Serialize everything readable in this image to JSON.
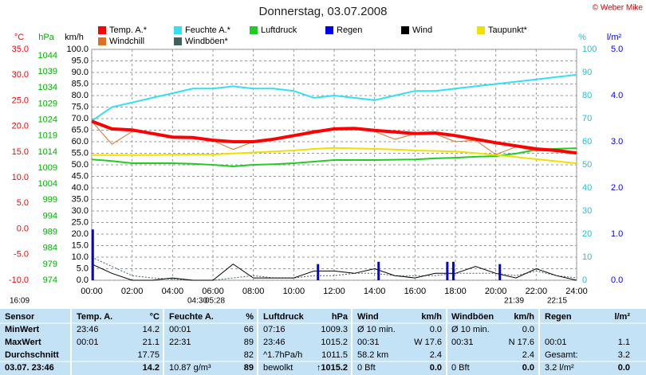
{
  "chart_data": {
    "type": "line",
    "title": "Donnerstag, 03.07.2008",
    "credit": "© Weber Mike",
    "x": [
      0,
      1,
      2,
      3,
      4,
      5,
      6,
      7,
      8,
      9,
      10,
      11,
      12,
      13,
      14,
      15,
      16,
      17,
      18,
      19,
      20,
      21,
      22,
      23,
      24
    ],
    "xlim": [
      0,
      24
    ],
    "xticks": [
      {
        "value": 0,
        "label": "00:00"
      },
      {
        "value": 2,
        "label": "02:00"
      },
      {
        "value": 4,
        "label": "04:00"
      },
      {
        "value": 6,
        "label": "06:00"
      },
      {
        "value": 8,
        "label": "08:00"
      },
      {
        "value": 10,
        "label": "10:00"
      },
      {
        "value": 12,
        "label": "12:00"
      },
      {
        "value": 14,
        "label": "14:00"
      },
      {
        "value": 16,
        "label": "16:00"
      },
      {
        "value": 18,
        "label": "18:00"
      },
      {
        "value": 20,
        "label": "20:00"
      },
      {
        "value": 22,
        "label": "22:00"
      },
      {
        "value": 24,
        "label": "24:00"
      }
    ],
    "grid": true,
    "axes": [
      {
        "id": "C",
        "label": "°C",
        "color": "#ff0000",
        "lim": [
          -10,
          35
        ],
        "ticks": [
          {
            "value": -10,
            "label": "-10.0"
          },
          {
            "value": -5,
            "label": "-5.0"
          },
          {
            "value": 0,
            "label": "0.0"
          },
          {
            "value": 5,
            "label": "5.0"
          },
          {
            "value": 10,
            "label": "10.0"
          },
          {
            "value": 15,
            "label": "15.0"
          },
          {
            "value": 20,
            "label": "20.0"
          },
          {
            "value": 25,
            "label": "25.0"
          },
          {
            "value": 30,
            "label": "30.0"
          },
          {
            "value": 35,
            "label": "35.0"
          }
        ]
      },
      {
        "id": "hPa",
        "label": "hPa",
        "color": "#00b000",
        "lim": [
          974,
          1046
        ],
        "ticks": [
          974,
          979,
          984,
          989,
          994,
          999,
          1004,
          1009,
          1014,
          1019,
          1024,
          1029,
          1034,
          1039,
          1044
        ]
      },
      {
        "id": "kmh",
        "label": "km/h",
        "color": "#000000",
        "lim": [
          0,
          100
        ],
        "ticks": [
          {
            "value": 0,
            "label": "0.0"
          },
          {
            "value": 5,
            "label": "5.0"
          },
          {
            "value": 10,
            "label": "10.0"
          },
          {
            "value": 15,
            "label": "15.0"
          },
          {
            "value": 20,
            "label": "20.0"
          },
          {
            "value": 25,
            "label": "25.0"
          },
          {
            "value": 30,
            "label": "30.0"
          },
          {
            "value": 35,
            "label": "35.0"
          },
          {
            "value": 40,
            "label": "40.0"
          },
          {
            "value": 45,
            "label": "45.0"
          },
          {
            "value": 50,
            "label": "50.0"
          },
          {
            "value": 55,
            "label": "55.0"
          },
          {
            "value": 60,
            "label": "60.0"
          },
          {
            "value": 65,
            "label": "65.0"
          },
          {
            "value": 70,
            "label": "70.0"
          },
          {
            "value": 75,
            "label": "75.0"
          },
          {
            "value": 80,
            "label": "80.0"
          },
          {
            "value": 85,
            "label": "85.0"
          },
          {
            "value": 90,
            "label": "90.0"
          },
          {
            "value": 95,
            "label": "95.0"
          },
          {
            "value": 100,
            "label": "100.0"
          }
        ]
      },
      {
        "id": "pct",
        "label": "%",
        "color": "#20c0d0",
        "lim": [
          0,
          100
        ],
        "ticks": [
          0,
          10,
          20,
          30,
          40,
          50,
          60,
          70,
          80,
          90,
          100
        ]
      },
      {
        "id": "lm2",
        "label": "l/m²",
        "color": "#0000ff",
        "lim": [
          0,
          5
        ],
        "ticks": [
          {
            "value": 0,
            "label": "0.0"
          },
          {
            "value": 1,
            "label": "1.0"
          },
          {
            "value": 2,
            "label": "2.0"
          },
          {
            "value": 3,
            "label": "3.0"
          },
          {
            "value": 4,
            "label": "4.0"
          },
          {
            "value": 5,
            "label": "5.0"
          }
        ]
      }
    ],
    "series": [
      {
        "name": "Temp. A.*",
        "color": "#ff0000",
        "axis": "C",
        "values": [
          21.0,
          19.5,
          19.3,
          18.6,
          17.9,
          17.8,
          17.3,
          17.0,
          17.0,
          17.5,
          18.2,
          18.9,
          19.5,
          19.6,
          19.2,
          18.9,
          18.6,
          18.7,
          18.2,
          17.5,
          16.8,
          16.2,
          15.6,
          15.3,
          14.8
        ]
      },
      {
        "name": "Feuchte A.*",
        "color": "#33e0f0",
        "axis": "pct",
        "values": [
          69,
          75,
          77,
          79,
          81,
          83,
          83,
          84,
          83,
          83,
          82,
          79,
          80,
          79,
          78,
          80,
          82,
          82,
          83,
          84,
          85,
          86,
          87,
          88,
          89
        ]
      },
      {
        "name": "Luftdruck",
        "color": "#22cc22",
        "axis": "hPa",
        "values": [
          1011.7,
          1011.2,
          1010.5,
          1010.5,
          1010.5,
          1010.3,
          1010.0,
          1009.5,
          1010.0,
          1010.2,
          1010.5,
          1011.0,
          1011.5,
          1011.5,
          1011.5,
          1011.6,
          1011.7,
          1012.0,
          1012.2,
          1012.5,
          1012.7,
          1013.5,
          1014.7,
          1015.0,
          1015.2
        ]
      },
      {
        "name": "Regen",
        "color": "#0000ee",
        "axis": "lm2",
        "style": "bar",
        "x": [
          0.05,
          11.2,
          14.2,
          17.6,
          17.9,
          20.2
        ],
        "values": [
          1.1,
          0.35,
          0.4,
          0.4,
          0.4,
          0.35
        ]
      },
      {
        "name": "Wind",
        "color": "#000000",
        "axis": "kmh",
        "values": [
          7,
          3,
          0,
          0,
          1,
          0,
          0,
          7,
          1,
          1,
          1,
          4,
          4,
          3,
          5,
          2,
          1,
          3,
          3,
          6,
          3,
          1,
          5,
          2,
          0
        ]
      },
      {
        "name": "Taupunkt*",
        "color": "#f0e000",
        "axis": "C",
        "values": [
          14.4,
          14.4,
          14.4,
          14.4,
          14.5,
          14.5,
          14.5,
          14.7,
          14.9,
          15.1,
          15.3,
          15.6,
          15.8,
          15.7,
          15.6,
          15.5,
          15.3,
          15.2,
          15.1,
          14.8,
          14.4,
          14.0,
          13.6,
          13.2,
          12.8
        ]
      },
      {
        "name": "Windchill",
        "color": "#e07020",
        "axis": "C",
        "values": [
          21.0,
          16.5,
          19.0,
          18.5,
          17.8,
          17.6,
          17.2,
          15.5,
          17.0,
          17.5,
          18.3,
          19.2,
          19.5,
          19.6,
          19.0,
          17.5,
          18.5,
          18.5,
          17.0,
          17.3,
          14.5,
          16.0,
          15.2,
          15.2,
          14.8
        ]
      },
      {
        "name": "Windböen*",
        "color": "#406060",
        "axis": "kmh",
        "style": "dashed",
        "values": [
          10,
          6,
          2,
          1,
          0.5,
          0,
          0,
          1,
          2,
          1,
          1,
          2,
          2,
          3,
          3,
          2,
          2,
          2,
          3,
          3,
          3,
          2,
          4,
          2,
          1
        ]
      }
    ]
  },
  "sun_times": [
    "16:09",
    "04:30",
    "05:28",
    "21:39",
    "22:15"
  ],
  "table": {
    "header": [
      "Sensor",
      "Temp. A.",
      "°C",
      "Feuchte A.",
      "%",
      "Luftdruck",
      "hPa",
      "Wind",
      "km/h",
      "Windböen",
      "km/h",
      "Regen",
      "l/m²"
    ],
    "rows": [
      [
        "MinWert",
        "23:46",
        "14.2",
        "00:01",
        "66",
        "07:16",
        "1009.3",
        "Ø 10 min.",
        "0.0",
        "Ø 10 min.",
        "0.0",
        null,
        null
      ],
      [
        "MaxWert",
        "00:01",
        "21.1",
        "22:31",
        "89",
        "23:46",
        "1015.2",
        "00:31",
        "W 17.6",
        "00:31",
        "N 17.6",
        "00:01",
        "1.1"
      ],
      [
        "Durchschnitt",
        null,
        "17.75",
        null,
        "82",
        "^1.7hPa/h",
        "1011.5",
        "58.2 km",
        "2.4",
        null,
        "2.4",
        "Gesamt:",
        "3.2"
      ],
      [
        "03.07. 23:46",
        null,
        "14.2",
        "10.87 g/m³",
        "89",
        "bewolkt",
        "↑1015.2",
        "0 Bft",
        "0.0",
        "0 Bft",
        "0.0",
        "3.2 l/m²",
        "0.0"
      ]
    ]
  }
}
